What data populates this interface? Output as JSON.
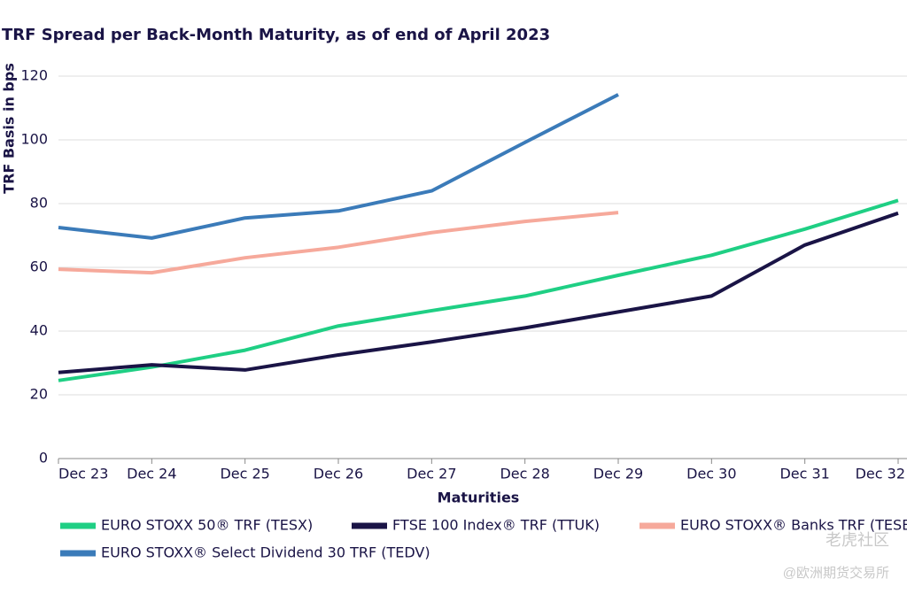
{
  "chart_data": {
    "type": "line",
    "title": "TRF Spread per Back-Month Maturity, as of end of April 2023",
    "y_label": "TRF Basis in bps",
    "x_label": "Maturities",
    "categories": [
      "Dec 23",
      "Dec 24",
      "Dec 25",
      "Dec 26",
      "Dec 27",
      "Dec 28",
      "Dec 29",
      "Dec 30",
      "Dec 31",
      "Dec 32"
    ],
    "series": [
      {
        "name": "EURO STOXX 50® TRF (TESX)",
        "color": "#1fcf84",
        "values": [
          24.5,
          28.7,
          34,
          41.6,
          46.4,
          51,
          57.5,
          63.8,
          72,
          81
        ]
      },
      {
        "name": "FTSE 100 Index® TRF (TTUK)",
        "color": "#1a1446",
        "values": [
          27,
          29.4,
          27.8,
          32.5,
          36.6,
          41,
          46,
          51,
          67,
          77
        ]
      },
      {
        "name": "EURO STOXX® Banks TRF (TESB)",
        "color": "#f6a99b",
        "values": [
          59.4,
          58.3,
          63,
          66.3,
          70.9,
          74.4,
          77.2,
          null,
          null,
          null
        ]
      },
      {
        "name": "EURO STOXX® Select Dividend 30 TRF (TEDV)",
        "color": "#3b7bb9",
        "values": [
          72.5,
          69.2,
          75.5,
          77.7,
          84,
          99.2,
          114.2,
          null,
          null,
          null
        ]
      }
    ],
    "ylim": [
      0,
      120
    ],
    "yticks": [
      0,
      20,
      40,
      60,
      80,
      100,
      120
    ],
    "grid": true,
    "legend": "bottom",
    "watermark": [
      "老虎社区",
      "@欧洲期货交易所"
    ]
  }
}
